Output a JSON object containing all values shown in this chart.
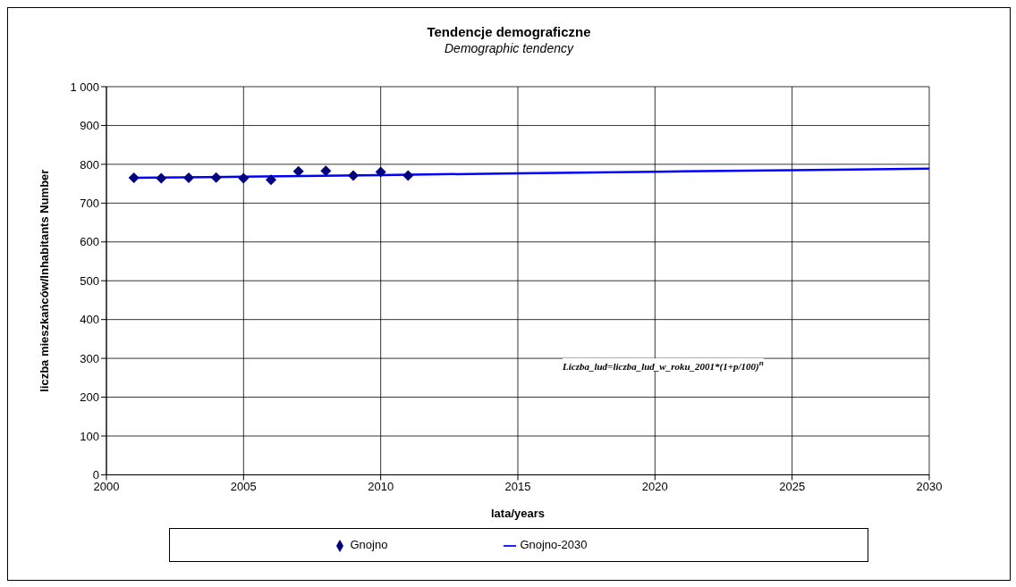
{
  "chart_data": {
    "type": "scatter",
    "title": "Tendencje demograficzne",
    "subtitle": "Demographic tendency",
    "xlabel": "lata/years",
    "ylabel": "liczba mieszkańców/Inhabitants Number",
    "annotations": [
      "Liczba_lud=liczba_lud_w_roku_2001*(1+p/100)$^{n}$"
    ],
    "series": [
      {
        "name": "Gnojno",
        "color": "#000080",
        "marker": "diamond",
        "x": [
          2001,
          2002,
          2003,
          2004,
          2005,
          2006,
          2007,
          2008,
          2009,
          2010,
          2011
        ],
        "values": [
          765,
          764,
          765,
          766,
          764,
          760,
          782,
          783,
          771,
          780,
          771
        ]
      },
      {
        "name": "Gnojno-2030",
        "type": "line",
        "color": "#0000ff",
        "marker": "none",
        "x": [
          2001,
          2005,
          2010,
          2015,
          2020,
          2025,
          2030
        ],
        "values": [
          765,
          768,
          772,
          777,
          781,
          785,
          789
        ]
      }
    ],
    "xlim": [
      2000,
      2030
    ],
    "xticks": [
      2000,
      2005,
      2010,
      2015,
      2020,
      2025,
      2030
    ],
    "ylim": [
      0,
      1000
    ],
    "yticks": [
      0,
      100,
      200,
      300,
      400,
      500,
      600,
      700,
      800,
      900,
      {
        "value": 1000,
        "label": "1 000"
      }
    ],
    "grid": true,
    "legend": "bottom"
  }
}
